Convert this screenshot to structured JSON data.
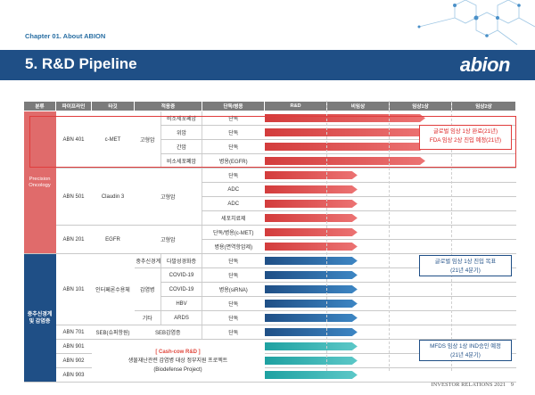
{
  "header": {
    "chapter": "Chapter 01. About ABION",
    "title": "5. R&D Pipeline",
    "logo": "abion"
  },
  "table": {
    "headers": [
      "분류",
      "파이프라인",
      "타깃",
      "적응증",
      "단독/병용",
      "R&D",
      "비임상",
      "임상1상",
      "임상2상"
    ],
    "categories": {
      "oncology": "Precision Oncology",
      "infection": "중추신경계 및 감염증"
    },
    "rows": [
      {
        "pipeline": "ABN 401",
        "target": "c-MET",
        "ind_group": "고형암",
        "ind": "비소세포폐암",
        "combo": "단독"
      },
      {
        "ind": "위암",
        "combo": "단독"
      },
      {
        "ind": "간암",
        "combo": "단독"
      },
      {
        "ind": "비소세포폐암",
        "combo": "병용(EGFR)"
      },
      {
        "pipeline": "ABN 501",
        "target": "Claudin 3",
        "ind_group": "고형암",
        "combo": "단독"
      },
      {
        "combo": "ADC"
      },
      {
        "combo": "ADC"
      },
      {
        "combo": "세포치료제"
      },
      {
        "pipeline": "ABN 201",
        "target": "EGFR",
        "ind_group": "고형암",
        "combo": "단독/병용(c-MET)"
      },
      {
        "combo": "병용(면역항암제)"
      },
      {
        "pipeline": "ABN 101",
        "target": "인터페론수용체",
        "ind_group": "중추신경계",
        "ind": "다발성경화증",
        "combo": "단독"
      },
      {
        "ind_group": "감염병",
        "ind": "COVID-19",
        "combo": "단독"
      },
      {
        "ind": "COVID-19",
        "combo": "병용(siRNA)"
      },
      {
        "ind": "HBV",
        "combo": "단독"
      },
      {
        "ind_group": "기타",
        "ind": "ARDS",
        "combo": "단독"
      },
      {
        "pipeline": "ABN 701",
        "target": "SEB(슈퍼항원)",
        "ind_group": "SEB감염증",
        "combo": "단독"
      },
      {
        "pipeline": "ABN 901"
      },
      {
        "pipeline": "ABN 902"
      },
      {
        "pipeline": "ABN 903"
      }
    ],
    "cashcow": {
      "title": "[ Cash-cow R&D ]",
      "line1": "생물재난관련 감염병 대상 정부지원 프로젝트",
      "line2": "(Biodefense Project)"
    }
  },
  "callouts": {
    "red_1": "글로벌 임상 1상 완료(21년)",
    "red_2": "FDA 임상 2상 진입 예정(21년)",
    "blue_1": "글로벌 임상 1상 진입 목표",
    "blue_2": "(21년 4분기)",
    "teal_1": "MFDS 임상 1상 IND승인 예정",
    "teal_2": "(21년 4분기)"
  },
  "progress": [
    0.64,
    0.64,
    0.64,
    0.64,
    0.37,
    0.37,
    0.37,
    0.37,
    0.37,
    0.37,
    0.37,
    0.37,
    0.37,
    0.37,
    0.37,
    0.37,
    0.37,
    0.37,
    0.37
  ],
  "footer": {
    "label": "INVESTOR RELATIONS 2021",
    "page": "9"
  },
  "colors": {
    "navy": "#1f4f86",
    "red": "#e06b6b",
    "teal": "#1ea1a1",
    "header_gray": "#7b7b7b"
  }
}
